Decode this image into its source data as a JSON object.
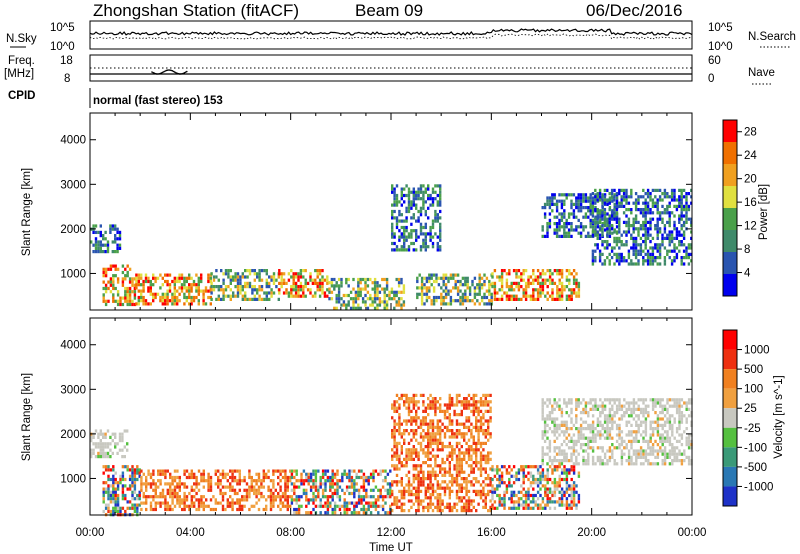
{
  "header": {
    "station": "Zhongshan Station (fitACF)",
    "beam": "Beam 09",
    "date": "06/Dec/2016"
  },
  "aux_panels": {
    "nsky_label": "N.Sky",
    "nsky_ticks": [
      "10^5",
      "10^0"
    ],
    "nsearch_label": "N.Search",
    "nsearch_ticks": [
      "10^5",
      "10^0"
    ],
    "freq_label": "Freq.",
    "freq_unit": "[MHz]",
    "freq_ticks": [
      "18",
      "8"
    ],
    "nave_label": "Nave",
    "nave_ticks": [
      "60",
      "0"
    ],
    "cpid_label": "CPID",
    "cpid_text": "normal (fast stereo) 153"
  },
  "colors": {
    "power_scale": [
      "#0000ee",
      "#2a55b0",
      "#3f8a6a",
      "#4aa04a",
      "#e0e040",
      "#f0a020",
      "#f07000",
      "#ff0000"
    ],
    "velocity_scale": [
      "#1e32c8",
      "#2a78b4",
      "#3a9a78",
      "#55c040",
      "#c8c8c0",
      "#f0a040",
      "#f08020",
      "#ee3010",
      "#ff0000"
    ]
  },
  "chart_data": [
    {
      "type": "heatmap",
      "title": "Power",
      "ylabel": "Slant Range [km]",
      "xlabel": "Time UT",
      "x_ticks": [
        "00:00",
        "04:00",
        "08:00",
        "12:00",
        "16:00",
        "20:00",
        "00:00"
      ],
      "xlim_hours": [
        0,
        24
      ],
      "y_ticks": [
        1000,
        2000,
        3000,
        4000
      ],
      "ylim": [
        180,
        4600
      ],
      "colorbar": {
        "label": "Power [dB]",
        "ticks": [
          4,
          8,
          12,
          16,
          20,
          24,
          28
        ],
        "range": [
          0,
          30
        ]
      },
      "regions": [
        {
          "t0": 0.0,
          "t1": 1.2,
          "r0": 1500,
          "r1": 2100,
          "level": "weak"
        },
        {
          "t0": 0.5,
          "t1": 1.8,
          "r0": 300,
          "r1": 1200,
          "level": "strong"
        },
        {
          "t0": 1.8,
          "t1": 4.8,
          "r0": 350,
          "r1": 1000,
          "level": "strong"
        },
        {
          "t0": 4.8,
          "t1": 7.5,
          "r0": 400,
          "r1": 1100,
          "level": "medium"
        },
        {
          "t0": 7.5,
          "t1": 9.5,
          "r0": 500,
          "r1": 1100,
          "level": "strong"
        },
        {
          "t0": 9.5,
          "t1": 12.5,
          "r0": 200,
          "r1": 900,
          "level": "medium"
        },
        {
          "t0": 12.0,
          "t1": 14.0,
          "r0": 1500,
          "r1": 3000,
          "level": "weak"
        },
        {
          "t0": 13.0,
          "t1": 16.0,
          "r0": 300,
          "r1": 1000,
          "level": "medium"
        },
        {
          "t0": 16.0,
          "t1": 19.5,
          "r0": 400,
          "r1": 1100,
          "level": "strong"
        },
        {
          "t0": 18.0,
          "t1": 21.0,
          "r0": 1800,
          "r1": 2800,
          "level": "weak"
        },
        {
          "t0": 20.0,
          "t1": 24.0,
          "r0": 1200,
          "r1": 2900,
          "level": "weak"
        }
      ]
    },
    {
      "type": "heatmap",
      "title": "Velocity",
      "ylabel": "Slant Range [km]",
      "xlabel": "Time UT",
      "x_ticks": [
        "00:00",
        "04:00",
        "08:00",
        "12:00",
        "16:00",
        "20:00",
        "00:00"
      ],
      "xlim_hours": [
        0,
        24
      ],
      "y_ticks": [
        1000,
        2000,
        3000,
        4000
      ],
      "ylim": [
        180,
        4600
      ],
      "colorbar": {
        "label": "Velocity [m s^-1]",
        "ticks": [
          "1000",
          "500",
          "100",
          "25",
          "-25",
          "-100",
          "-500",
          "-1000"
        ]
      },
      "regions": [
        {
          "t0": 0.0,
          "t1": 1.5,
          "r0": 1500,
          "r1": 2100,
          "level": "grey"
        },
        {
          "t0": 0.5,
          "t1": 2.0,
          "r0": 200,
          "r1": 1300,
          "level": "mixed"
        },
        {
          "t0": 2.0,
          "t1": 8.0,
          "r0": 300,
          "r1": 1200,
          "level": "orange"
        },
        {
          "t0": 8.0,
          "t1": 12.0,
          "r0": 200,
          "r1": 1200,
          "level": "mixed"
        },
        {
          "t0": 12.0,
          "t1": 16.0,
          "r0": 300,
          "r1": 2900,
          "level": "orange"
        },
        {
          "t0": 16.0,
          "t1": 19.5,
          "r0": 300,
          "r1": 1300,
          "level": "mixed"
        },
        {
          "t0": 18.0,
          "t1": 24.0,
          "r0": 1300,
          "r1": 2800,
          "level": "grey"
        }
      ]
    }
  ]
}
